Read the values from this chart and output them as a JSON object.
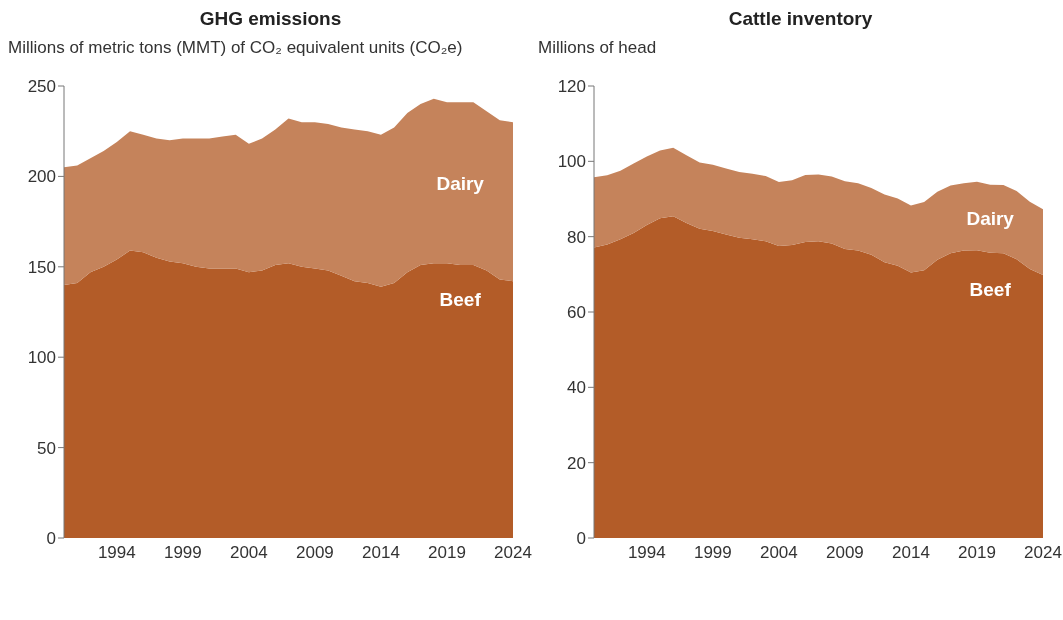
{
  "chart_data": [
    {
      "type": "area",
      "title": "GHG emissions",
      "ylabel": "Millions of metric tons (MMT) of CO₂ equivalent units (CO₂e)",
      "stacked": true,
      "x": [
        1990,
        1991,
        1992,
        1993,
        1994,
        1995,
        1996,
        1997,
        1998,
        1999,
        2000,
        2001,
        2002,
        2003,
        2004,
        2005,
        2006,
        2007,
        2008,
        2009,
        2010,
        2011,
        2012,
        2013,
        2014,
        2015,
        2016,
        2017,
        2018,
        2019,
        2020,
        2021,
        2022,
        2023,
        2024
      ],
      "series": [
        {
          "name": "Beef",
          "color": "#b35c28",
          "values": [
            140,
            141,
            147,
            150,
            154,
            159,
            158,
            155,
            153,
            152,
            150,
            149,
            149,
            149,
            147,
            148,
            151,
            152,
            150,
            149,
            148,
            145,
            142,
            141,
            139,
            141,
            147,
            151,
            152,
            152,
            151,
            151,
            148,
            143,
            142
          ]
        },
        {
          "name": "Dairy",
          "color": "#c5835b",
          "values": [
            65,
            65,
            63,
            64,
            65,
            66,
            65,
            66,
            67,
            69,
            71,
            72,
            73,
            74,
            71,
            73,
            75,
            80,
            80,
            81,
            81,
            82,
            84,
            84,
            84,
            86,
            88,
            89,
            91,
            89,
            90,
            90,
            88,
            88,
            88
          ]
        }
      ],
      "xlim": [
        1990,
        2024
      ],
      "xticks": [
        1994,
        1999,
        2004,
        2009,
        2014,
        2019,
        2024
      ],
      "ylim": [
        0,
        250
      ],
      "yticks": [
        0,
        50,
        100,
        150,
        200,
        250
      ],
      "grid": false,
      "legend": false
    },
    {
      "type": "area",
      "title": "Cattle inventory",
      "ylabel": "Millions of head",
      "stacked": true,
      "x": [
        1990,
        1991,
        1992,
        1993,
        1994,
        1995,
        1996,
        1997,
        1998,
        1999,
        2000,
        2001,
        2002,
        2003,
        2004,
        2005,
        2006,
        2007,
        2008,
        2009,
        2010,
        2011,
        2012,
        2013,
        2014,
        2015,
        2016,
        2017,
        2018,
        2019,
        2020,
        2021,
        2022,
        2023,
        2024
      ],
      "series": [
        {
          "name": "Beef",
          "color": "#b35c28",
          "values": [
            77.1,
            77.9,
            79.3,
            81,
            83.1,
            84.9,
            85.4,
            83.6,
            82.1,
            81.5,
            80.6,
            79.7,
            79.3,
            78.8,
            77.5,
            77.8,
            78.6,
            78.8,
            78.2,
            76.7,
            76.3,
            75.2,
            73.2,
            72.3,
            70.5,
            71.1,
            73.9,
            75.6,
            76.3,
            76.4,
            75.7,
            75.6,
            74,
            71.4,
            69.8
          ]
        },
        {
          "name": "Dairy",
          "color": "#c5835b",
          "values": [
            18.7,
            18.4,
            18.2,
            18.4,
            18.2,
            18,
            18.2,
            18,
            17.6,
            17.6,
            17.5,
            17.5,
            17.4,
            17.3,
            17,
            17.2,
            17.8,
            17.7,
            17.8,
            18,
            17.9,
            17.7,
            18,
            17.8,
            17.8,
            18.1,
            18,
            18,
            17.9,
            18.2,
            18.1,
            18.1,
            18.1,
            17.9,
            17.5
          ]
        }
      ],
      "xlim": [
        1990,
        2024
      ],
      "xticks": [
        1994,
        1999,
        2004,
        2009,
        2014,
        2019,
        2024
      ],
      "ylim": [
        0,
        120
      ],
      "yticks": [
        0,
        20,
        40,
        60,
        80,
        100,
        120
      ],
      "grid": false,
      "legend": false
    }
  ]
}
